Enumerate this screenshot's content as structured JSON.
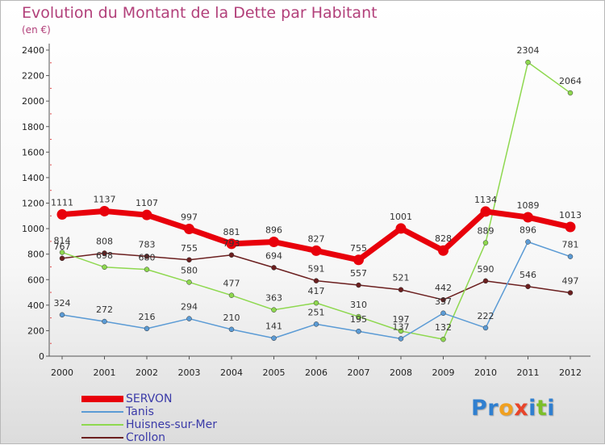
{
  "title": "Evolution du Montant de la Dette par Habitant",
  "subtitle": "(en €)",
  "logo": {
    "text": "Proxiti",
    "letters": [
      {
        "ch": "P",
        "color": "#2f7fd0"
      },
      {
        "ch": "r",
        "color": "#2f7fd0"
      },
      {
        "ch": "o",
        "color": "#f0a020"
      },
      {
        "ch": "x",
        "color": "#e8442a"
      },
      {
        "ch": "i",
        "color": "#2f7fd0"
      },
      {
        "ch": "t",
        "color": "#7cbf2a"
      },
      {
        "ch": "i",
        "color": "#2f7fd0"
      }
    ]
  },
  "chart_data": {
    "type": "line",
    "title": "Evolution du Montant de la Dette par Habitant",
    "subtitle": "(en €)",
    "xlabel": "",
    "ylabel": "",
    "categories": [
      "2000",
      "2001",
      "2002",
      "2003",
      "2004",
      "2005",
      "2006",
      "2007",
      "2008",
      "2009",
      "2010",
      "2011",
      "2012"
    ],
    "ylim": [
      0,
      2400
    ],
    "yticks": [
      0,
      200,
      400,
      600,
      800,
      1000,
      1200,
      1400,
      1600,
      1800,
      2000,
      2200,
      2400
    ],
    "grid": false,
    "legend_position": "bottom-left",
    "series": [
      {
        "name": "SERVON",
        "color": "#e8000b",
        "values": [
          1111,
          1137,
          1107,
          997,
          881,
          896,
          827,
          755,
          1001,
          828,
          1134,
          1089,
          1013
        ]
      },
      {
        "name": "Tanis",
        "color": "#5b9bd5",
        "values": [
          324,
          272,
          216,
          294,
          210,
          141,
          251,
          195,
          137,
          337,
          222,
          896,
          781
        ]
      },
      {
        "name": "Huisnes-sur-Mer",
        "color": "#8ed84f",
        "values": [
          814,
          698,
          680,
          580,
          477,
          363,
          417,
          310,
          197,
          132,
          889,
          2304,
          2064
        ]
      },
      {
        "name": "Crollon",
        "color": "#6b1f1f",
        "values": [
          767,
          808,
          783,
          755,
          793,
          694,
          591,
          557,
          521,
          442,
          590,
          546,
          497
        ]
      }
    ]
  }
}
